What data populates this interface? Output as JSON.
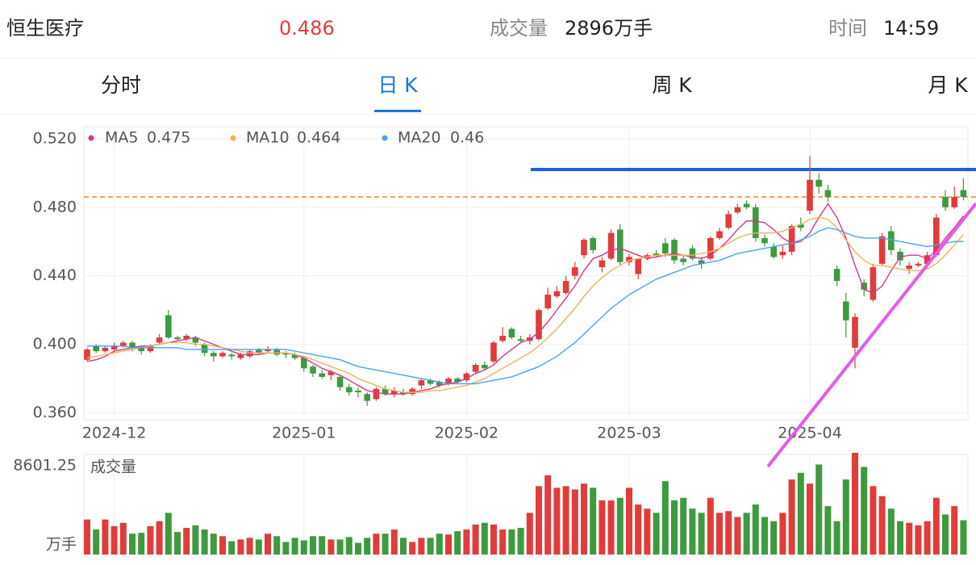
{
  "header": {
    "name": "恒生医疗",
    "price": 0.486,
    "volume_label": "成交量",
    "volume": "2896万手",
    "time_label": "时间",
    "time": "14:59"
  },
  "tabs": [
    "分时",
    "日 K",
    "周 K",
    "月 K"
  ],
  "active_tab": 1,
  "chart_data": {
    "type": "candlestick",
    "up_color": "#e03c3c",
    "down_color": "#3d9a3f",
    "categories": [
      null,
      null,
      null,
      "2024-12",
      null,
      null,
      null,
      null,
      null,
      null,
      null,
      null,
      null,
      null,
      null,
      null,
      null,
      null,
      null,
      null,
      null,
      null,
      null,
      null,
      "2025-01",
      null,
      null,
      null,
      null,
      null,
      null,
      null,
      null,
      null,
      null,
      null,
      null,
      null,
      null,
      null,
      null,
      null,
      "2025-02",
      null,
      null,
      null,
      null,
      null,
      null,
      null,
      null,
      null,
      null,
      null,
      null,
      null,
      null,
      null,
      null,
      null,
      "2025-03",
      null,
      null,
      null,
      null,
      null,
      null,
      null,
      null,
      null,
      null,
      null,
      null,
      null,
      null,
      null,
      null,
      null,
      null,
      null,
      "2025-04",
      null,
      null,
      null,
      null,
      null,
      null,
      null,
      null,
      null,
      null,
      null,
      null,
      null,
      null,
      null,
      null,
      null
    ],
    "open": [
      0.391,
      0.399,
      0.396,
      0.397,
      0.399,
      0.401,
      0.398,
      0.396,
      0.401,
      0.417,
      0.404,
      0.403,
      0.404,
      0.4,
      0.395,
      0.393,
      0.394,
      0.392,
      0.393,
      0.397,
      0.396,
      0.397,
      0.395,
      0.394,
      0.392,
      0.387,
      0.383,
      0.382,
      0.381,
      0.375,
      0.373,
      0.371,
      0.368,
      0.374,
      0.371,
      0.372,
      0.371,
      0.376,
      0.379,
      0.378,
      0.377,
      0.38,
      0.379,
      0.384,
      0.388,
      0.39,
      0.402,
      0.409,
      0.403,
      0.402,
      0.403,
      0.421,
      0.428,
      0.43,
      0.44,
      0.452,
      0.462,
      0.445,
      0.45,
      0.467,
      0.448,
      0.441,
      0.45,
      0.453,
      0.459,
      0.461,
      0.45,
      0.456,
      0.449,
      0.45,
      0.462,
      0.468,
      0.477,
      0.482,
      0.48,
      0.462,
      0.457,
      0.452,
      0.454,
      0.47,
      0.478,
      0.496,
      0.49,
      0.444,
      0.425,
      0.398,
      0.436,
      0.426,
      0.447,
      0.466,
      0.454,
      0.444,
      0.446,
      0.447,
      0.452,
      0.486,
      0.48,
      0.49
    ],
    "high": [
      0.398,
      0.4,
      0.399,
      0.401,
      0.402,
      0.402,
      0.399,
      0.4,
      0.406,
      0.42,
      0.405,
      0.406,
      0.405,
      0.401,
      0.396,
      0.396,
      0.395,
      0.395,
      0.397,
      0.398,
      0.399,
      0.398,
      0.396,
      0.395,
      0.393,
      0.388,
      0.385,
      0.385,
      0.382,
      0.377,
      0.375,
      0.372,
      0.375,
      0.376,
      0.375,
      0.374,
      0.375,
      0.38,
      0.38,
      0.379,
      0.381,
      0.381,
      0.384,
      0.389,
      0.39,
      0.402,
      0.41,
      0.41,
      0.405,
      0.406,
      0.421,
      0.433,
      0.434,
      0.44,
      0.448,
      0.462,
      0.463,
      0.451,
      0.467,
      0.47,
      0.453,
      0.45,
      0.453,
      0.455,
      0.462,
      0.462,
      0.452,
      0.458,
      0.451,
      0.463,
      0.468,
      0.478,
      0.482,
      0.484,
      0.482,
      0.464,
      0.459,
      0.458,
      0.47,
      0.474,
      0.51,
      0.5,
      0.493,
      0.446,
      0.43,
      0.418,
      0.438,
      0.447,
      0.465,
      0.469,
      0.456,
      0.448,
      0.448,
      0.454,
      0.476,
      0.49,
      0.492,
      0.497
    ],
    "low": [
      0.39,
      0.395,
      0.395,
      0.396,
      0.398,
      0.396,
      0.394,
      0.395,
      0.4,
      0.403,
      0.402,
      0.402,
      0.399,
      0.393,
      0.39,
      0.392,
      0.391,
      0.391,
      0.392,
      0.394,
      0.395,
      0.393,
      0.392,
      0.391,
      0.384,
      0.381,
      0.38,
      0.379,
      0.373,
      0.37,
      0.369,
      0.364,
      0.367,
      0.37,
      0.369,
      0.37,
      0.37,
      0.374,
      0.376,
      0.375,
      0.376,
      0.377,
      0.378,
      0.383,
      0.385,
      0.389,
      0.401,
      0.403,
      0.401,
      0.4,
      0.402,
      0.42,
      0.427,
      0.429,
      0.438,
      0.45,
      0.453,
      0.442,
      0.449,
      0.446,
      0.446,
      0.438,
      0.449,
      0.451,
      0.451,
      0.447,
      0.446,
      0.449,
      0.444,
      0.449,
      0.461,
      0.467,
      0.476,
      0.479,
      0.46,
      0.457,
      0.45,
      0.45,
      0.452,
      0.466,
      0.476,
      0.488,
      0.483,
      0.434,
      0.404,
      0.386,
      0.428,
      0.425,
      0.446,
      0.452,
      0.446,
      0.441,
      0.445,
      0.446,
      0.451,
      0.478,
      0.479,
      0.484
    ],
    "close": [
      0.397,
      0.396,
      0.398,
      0.399,
      0.401,
      0.398,
      0.396,
      0.399,
      0.404,
      0.404,
      0.403,
      0.405,
      0.401,
      0.395,
      0.393,
      0.395,
      0.393,
      0.394,
      0.396,
      0.395,
      0.397,
      0.394,
      0.394,
      0.392,
      0.386,
      0.383,
      0.381,
      0.384,
      0.375,
      0.372,
      0.372,
      0.367,
      0.374,
      0.371,
      0.373,
      0.371,
      0.374,
      0.379,
      0.377,
      0.376,
      0.38,
      0.378,
      0.383,
      0.388,
      0.386,
      0.401,
      0.405,
      0.404,
      0.402,
      0.404,
      0.42,
      0.429,
      0.431,
      0.437,
      0.445,
      0.461,
      0.455,
      0.449,
      0.465,
      0.448,
      0.451,
      0.45,
      0.452,
      0.452,
      0.453,
      0.449,
      0.448,
      0.45,
      0.447,
      0.462,
      0.466,
      0.476,
      0.48,
      0.48,
      0.462,
      0.459,
      0.451,
      0.454,
      0.469,
      0.468,
      0.496,
      0.492,
      0.486,
      0.437,
      0.414,
      0.416,
      0.432,
      0.445,
      0.463,
      0.455,
      0.449,
      0.446,
      0.447,
      0.452,
      0.474,
      0.48,
      0.486,
      0.486
    ],
    "series": [
      {
        "name": "MA5",
        "color": "#d9368b",
        "values": [
          0.39,
          0.391,
          0.393,
          0.396,
          0.397,
          0.398,
          0.399,
          0.399,
          0.4,
          0.401,
          0.402,
          0.403,
          0.404,
          0.402,
          0.4,
          0.398,
          0.396,
          0.394,
          0.394,
          0.394,
          0.395,
          0.395,
          0.395,
          0.394,
          0.392,
          0.389,
          0.386,
          0.384,
          0.382,
          0.379,
          0.376,
          0.373,
          0.372,
          0.371,
          0.371,
          0.371,
          0.372,
          0.373,
          0.374,
          0.376,
          0.377,
          0.378,
          0.38,
          0.383,
          0.385,
          0.388,
          0.393,
          0.397,
          0.401,
          0.403,
          0.407,
          0.413,
          0.42,
          0.427,
          0.434,
          0.443,
          0.45,
          0.452,
          0.455,
          0.456,
          0.454,
          0.452,
          0.45,
          0.451,
          0.452,
          0.453,
          0.452,
          0.451,
          0.45,
          0.452,
          0.456,
          0.461,
          0.467,
          0.472,
          0.472,
          0.471,
          0.467,
          0.462,
          0.459,
          0.46,
          0.465,
          0.474,
          0.482,
          0.474,
          0.462,
          0.446,
          0.432,
          0.43,
          0.434,
          0.443,
          0.451,
          0.452,
          0.452,
          0.45,
          0.455,
          0.462,
          0.468,
          0.475
        ]
      },
      {
        "name": "MA10",
        "color": "#f0b35e",
        "values": [
          0.392,
          0.393,
          0.394,
          0.395,
          0.396,
          0.397,
          0.398,
          0.399,
          0.4,
          0.401,
          0.401,
          0.401,
          0.4,
          0.4,
          0.399,
          0.398,
          0.397,
          0.396,
          0.395,
          0.395,
          0.395,
          0.395,
          0.395,
          0.394,
          0.393,
          0.391,
          0.389,
          0.387,
          0.385,
          0.383,
          0.38,
          0.378,
          0.376,
          0.374,
          0.373,
          0.372,
          0.372,
          0.372,
          0.373,
          0.373,
          0.374,
          0.375,
          0.376,
          0.378,
          0.38,
          0.383,
          0.386,
          0.389,
          0.392,
          0.395,
          0.399,
          0.404,
          0.409,
          0.415,
          0.421,
          0.428,
          0.434,
          0.439,
          0.443,
          0.446,
          0.449,
          0.45,
          0.451,
          0.452,
          0.452,
          0.452,
          0.452,
          0.452,
          0.453,
          0.454,
          0.456,
          0.459,
          0.462,
          0.464,
          0.465,
          0.465,
          0.465,
          0.466,
          0.468,
          0.47,
          0.473,
          0.474,
          0.473,
          0.468,
          0.461,
          0.454,
          0.449,
          0.446,
          0.446,
          0.445,
          0.444,
          0.443,
          0.443,
          0.444,
          0.447,
          0.452,
          0.458,
          0.464
        ]
      },
      {
        "name": "MA20",
        "color": "#4aa3f0",
        "values": [
          0.399,
          0.399,
          0.399,
          0.399,
          0.399,
          0.398,
          0.398,
          0.398,
          0.398,
          0.398,
          0.398,
          0.397,
          0.397,
          0.397,
          0.397,
          0.397,
          0.397,
          0.397,
          0.397,
          0.397,
          0.397,
          0.397,
          0.397,
          0.396,
          0.395,
          0.394,
          0.393,
          0.392,
          0.391,
          0.389,
          0.387,
          0.386,
          0.385,
          0.384,
          0.383,
          0.382,
          0.381,
          0.38,
          0.379,
          0.378,
          0.377,
          0.377,
          0.377,
          0.377,
          0.378,
          0.379,
          0.38,
          0.381,
          0.383,
          0.385,
          0.387,
          0.39,
          0.393,
          0.397,
          0.401,
          0.406,
          0.411,
          0.416,
          0.421,
          0.425,
          0.429,
          0.432,
          0.435,
          0.438,
          0.44,
          0.442,
          0.444,
          0.446,
          0.447,
          0.448,
          0.449,
          0.451,
          0.453,
          0.454,
          0.455,
          0.456,
          0.457,
          0.458,
          0.459,
          0.461,
          0.463,
          0.466,
          0.468,
          0.467,
          0.465,
          0.463,
          0.462,
          0.462,
          0.462,
          0.461,
          0.46,
          0.459,
          0.458,
          0.457,
          0.458,
          0.459,
          0.46,
          0.46
        ]
      }
    ],
    "ylim": [
      0.356,
      0.527
    ],
    "yticks": [
      {
        "value": 0.36,
        "label": "0.360"
      },
      {
        "value": 0.4,
        "label": "0.400"
      },
      {
        "value": 0.44,
        "label": "0.440"
      },
      {
        "value": 0.48,
        "label": "0.480"
      },
      {
        "value": 0.52,
        "label": "0.520"
      }
    ],
    "volume_title": "成交量",
    "volume_unit": "万手",
    "volume": [
      2961,
      2115,
      2961,
      2397,
      2679,
      1763,
      1833,
      2397,
      2820,
      3525,
      1904,
      2256,
      2468,
      2115,
      1763,
      1551,
      1128,
      1269,
      1410,
      1269,
      1763,
      1551,
      1058,
      1410,
      1199,
      1551,
      1551,
      1269,
      1269,
      1481,
      987,
      1410,
      1763,
      1763,
      2115,
      1410,
      1058,
      1410,
      1410,
      1763,
      1692,
      1974,
      2115,
      2538,
      2679,
      2538,
      2115,
      2115,
      2256,
      3525,
      5781,
      6698,
      5640,
      5781,
      5499,
      5993,
      5640,
      4583,
      4583,
      4794,
      5640,
      4230,
      3878,
      3525,
      6204,
      4583,
      4794,
      3878,
      3525,
      4794,
      3525,
      3666,
      3173,
      3525,
      4230,
      3173,
      2820,
      3525,
      6345,
      6909,
      5993,
      7614,
      4089,
      2820,
      6345,
      8601,
      7403,
      5781,
      4935,
      3878,
      2820,
      2679,
      2468,
      2820,
      4794,
      3384,
      4089,
      2896
    ],
    "volume_ylim": [
      0,
      8601.25
    ],
    "volume_yticks": [
      8601.25
    ],
    "grid": true
  }
}
